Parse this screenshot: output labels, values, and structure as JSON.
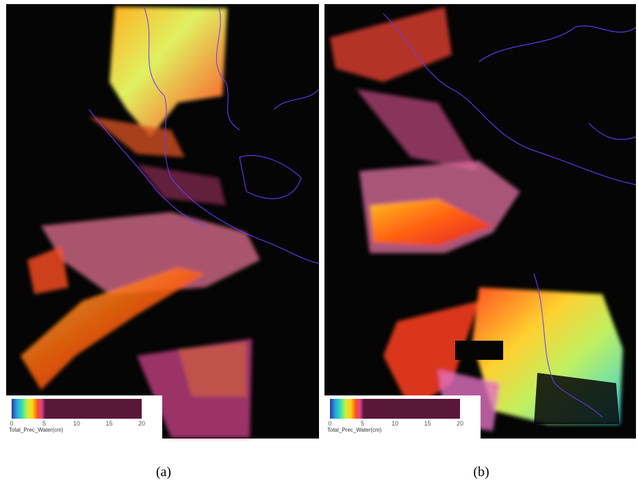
{
  "panels": [
    {
      "caption": "(a)",
      "colorbar": {
        "ticks": [
          0,
          5,
          10,
          15,
          20
        ],
        "label": "Total_Prec_Water(cm)"
      }
    },
    {
      "caption": "(b)",
      "colorbar": {
        "ticks": [
          0,
          5,
          10,
          15,
          20
        ],
        "label": "Total_Prec_Water(cm)"
      }
    }
  ]
}
